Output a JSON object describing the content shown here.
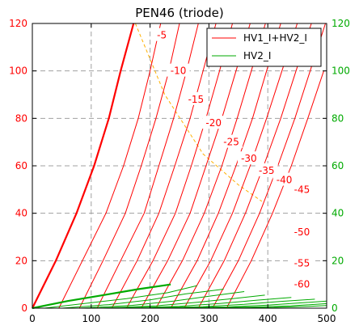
{
  "chart_data": {
    "type": "line",
    "title": "PEN46  (triode)",
    "xlabel": "",
    "ylabel": "",
    "xlim": [
      0,
      500
    ],
    "ylim_left": [
      0,
      120
    ],
    "ylim_right": [
      0,
      120
    ],
    "x_ticks": [
      "0",
      "100",
      "200",
      "300",
      "400",
      "500"
    ],
    "y_ticks_left": [
      "0",
      "20",
      "40",
      "60",
      "80",
      "100",
      "120"
    ],
    "y_ticks_right": [
      "0",
      "20",
      "40",
      "60",
      "80",
      "100",
      "120"
    ],
    "grid": true,
    "legend_position": "top-right",
    "colors": {
      "left_axis": "#ff0000",
      "right_axis": "#00aa00",
      "series1": "#ff0000",
      "series2": "#00aa00",
      "load_line": "#ffb000",
      "grid": "#a0a0a0"
    },
    "series": [
      {
        "name": "HV1_I+HV2_I",
        "color": "#ff0000",
        "curves": [
          {
            "grid_v": "0",
            "points": [
              [
                0,
                0
              ],
              [
                40,
                20
              ],
              [
                75,
                40
              ],
              [
                105,
                60
              ],
              [
                130,
                80
              ],
              [
                150,
                100
              ],
              [
                172,
                120
              ]
            ]
          },
          {
            "grid_v": "-5",
            "points": [
              [
                45,
                0
              ],
              [
                85,
                20
              ],
              [
                125,
                40
              ],
              [
                155,
                60
              ],
              [
                180,
                80
              ],
              [
                200,
                100
              ],
              [
                218,
                120
              ]
            ]
          },
          {
            "grid_v": "-10",
            "points": [
              [
                80,
                0
              ],
              [
                120,
                20
              ],
              [
                158,
                40
              ],
              [
                185,
                60
              ],
              [
                210,
                80
              ],
              [
                232,
                100
              ],
              [
                250,
                120
              ]
            ]
          },
          {
            "grid_v": "-15",
            "points": [
              [
                110,
                0
              ],
              [
                150,
                20
              ],
              [
                190,
                40
              ],
              [
                215,
                60
              ],
              [
                240,
                80
              ],
              [
                262,
                100
              ],
              [
                282,
                120
              ]
            ]
          },
          {
            "grid_v": "-20",
            "points": [
              [
                135,
                0
              ],
              [
                178,
                20
              ],
              [
                215,
                40
              ],
              [
                242,
                60
              ],
              [
                268,
                80
              ],
              [
                290,
                100
              ],
              [
                312,
                120
              ]
            ]
          },
          {
            "grid_v": "-25",
            "points": [
              [
                160,
                0
              ],
              [
                205,
                20
              ],
              [
                243,
                40
              ],
              [
                270,
                60
              ],
              [
                295,
                80
              ],
              [
                318,
                100
              ],
              [
                340,
                120
              ]
            ]
          },
          {
            "grid_v": "-30",
            "points": [
              [
                185,
                0
              ],
              [
                230,
                20
              ],
              [
                268,
                40
              ],
              [
                295,
                60
              ],
              [
                322,
                80
              ],
              [
                346,
                100
              ],
              [
                370,
                120
              ]
            ]
          },
          {
            "grid_v": "-35",
            "points": [
              [
                210,
                0
              ],
              [
                255,
                20
              ],
              [
                292,
                40
              ],
              [
                322,
                60
              ],
              [
                348,
                80
              ],
              [
                372,
                100
              ],
              [
                396,
                120
              ]
            ]
          },
          {
            "grid_v": "-40",
            "points": [
              [
                235,
                0
              ],
              [
                280,
                20
              ],
              [
                316,
                40
              ],
              [
                346,
                60
              ],
              [
                374,
                80
              ],
              [
                398,
                100
              ],
              [
                422,
                120
              ]
            ]
          },
          {
            "grid_v": "-45",
            "points": [
              [
                258,
                0
              ],
              [
                303,
                20
              ],
              [
                340,
                40
              ],
              [
                370,
                60
              ],
              [
                398,
                80
              ],
              [
                424,
                100
              ],
              [
                450,
                120
              ]
            ]
          },
          {
            "grid_v": "-50",
            "points": [
              [
                282,
                0
              ],
              [
                326,
                20
              ],
              [
                362,
                40
              ],
              [
                393,
                60
              ],
              [
                422,
                80
              ],
              [
                448,
                100
              ],
              [
                474,
                120
              ]
            ]
          },
          {
            "grid_v": "-55",
            "points": [
              [
                306,
                0
              ],
              [
                350,
                20
              ],
              [
                386,
                40
              ],
              [
                417,
                60
              ],
              [
                446,
                80
              ],
              [
                472,
                100
              ],
              [
                498,
                120
              ]
            ]
          },
          {
            "grid_v": "-60",
            "points": [
              [
                330,
                0
              ],
              [
                372,
                20
              ],
              [
                408,
                40
              ],
              [
                440,
                60
              ],
              [
                468,
                80
              ],
              [
                495,
                100
              ]
            ]
          }
        ]
      },
      {
        "name": "HV2_I",
        "color": "#00aa00",
        "curves": [
          {
            "grid_v": "0",
            "points": [
              [
                0,
                0
              ],
              [
                60,
                3
              ],
              [
                120,
                5.5
              ],
              [
                180,
                8
              ],
              [
                235,
                10
              ]
            ]
          },
          {
            "grid_v": "-5",
            "points": [
              [
                20,
                0
              ],
              [
                90,
                2
              ],
              [
                160,
                4
              ],
              [
                230,
                6.5
              ],
              [
                280,
                9.5
              ]
            ]
          },
          {
            "grid_v": "-10",
            "points": [
              [
                50,
                0
              ],
              [
                130,
                1.5
              ],
              [
                200,
                3.5
              ],
              [
                260,
                6
              ],
              [
                325,
                8
              ]
            ]
          },
          {
            "grid_v": "-15",
            "points": [
              [
                80,
                0
              ],
              [
                170,
                1.2
              ],
              [
                240,
                3
              ],
              [
                300,
                5
              ],
              [
                360,
                7
              ]
            ]
          },
          {
            "grid_v": "-20",
            "points": [
              [
                110,
                0
              ],
              [
                210,
                1
              ],
              [
                280,
                2.5
              ],
              [
                340,
                4
              ],
              [
                395,
                5.5
              ]
            ]
          },
          {
            "grid_v": "-25",
            "points": [
              [
                140,
                0
              ],
              [
                250,
                0.8
              ],
              [
                320,
                2
              ],
              [
                380,
                3.3
              ],
              [
                440,
                4.5
              ]
            ]
          },
          {
            "grid_v": "-30",
            "points": [
              [
                170,
                0
              ],
              [
                290,
                0.6
              ],
              [
                360,
                1.6
              ],
              [
                420,
                2.8
              ],
              [
                480,
                3.8
              ]
            ]
          },
          {
            "grid_v": "-35",
            "points": [
              [
                200,
                0
              ],
              [
                330,
                0.5
              ],
              [
                400,
                1.3
              ],
              [
                460,
                2.3
              ],
              [
                500,
                3
              ]
            ]
          },
          {
            "grid_v": "-40",
            "points": [
              [
                230,
                0
              ],
              [
                370,
                0.4
              ],
              [
                440,
                1
              ],
              [
                500,
                1.9
              ]
            ]
          },
          {
            "grid_v": "-45",
            "points": [
              [
                260,
                0
              ],
              [
                410,
                0.3
              ],
              [
                470,
                0.8
              ],
              [
                500,
                1.1
              ]
            ]
          }
        ]
      }
    ],
    "load_line": {
      "points": [
        [
          175,
          120
        ],
        [
          225,
          90
        ],
        [
          290,
          65
        ],
        [
          350,
          52
        ],
        [
          390,
          45
        ]
      ]
    },
    "curve_labels": [
      {
        "text": "-5",
        "x": 220,
        "y": 115
      },
      {
        "text": "-10",
        "x": 248,
        "y": 100
      },
      {
        "text": "-15",
        "x": 278,
        "y": 88
      },
      {
        "text": "-20",
        "x": 308,
        "y": 78
      },
      {
        "text": "-25",
        "x": 338,
        "y": 70
      },
      {
        "text": "-30",
        "x": 368,
        "y": 63
      },
      {
        "text": "-35",
        "x": 398,
        "y": 58
      },
      {
        "text": "-40",
        "x": 428,
        "y": 54
      },
      {
        "text": "-45",
        "x": 458,
        "y": 50
      },
      {
        "text": "-50",
        "x": 458,
        "y": 32
      },
      {
        "text": "-55",
        "x": 458,
        "y": 19
      },
      {
        "text": "-60",
        "x": 458,
        "y": 10
      }
    ]
  }
}
